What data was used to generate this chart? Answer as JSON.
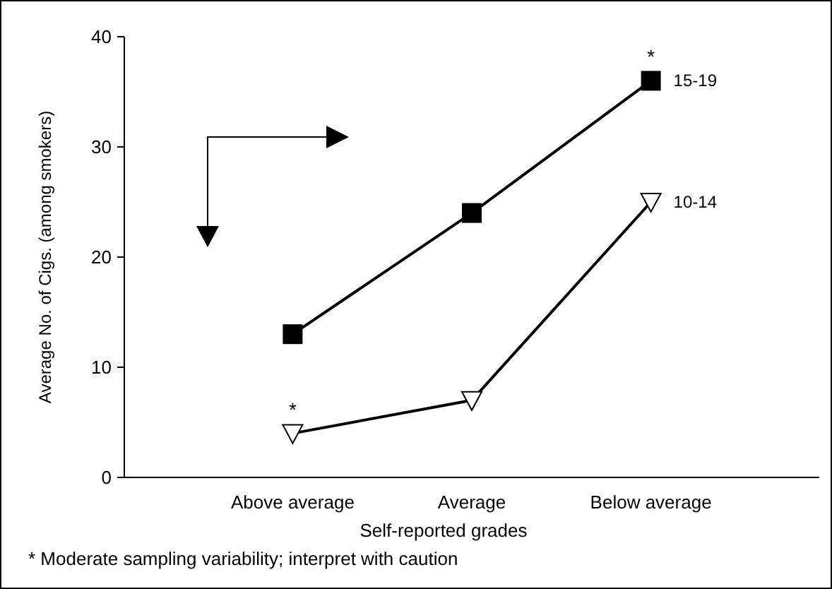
{
  "chart_data": {
    "type": "line",
    "xlabel": "Self-reported grades",
    "ylabel": "Average No. of Cigs. (among smokers)",
    "categories": [
      "Above average",
      "Average",
      "Below average"
    ],
    "series": [
      {
        "name": "15-19",
        "color": "#000000",
        "values": [
          13,
          24,
          36
        ],
        "marker": "square"
      },
      {
        "name": "10-14",
        "color": "#000000",
        "values": [
          4,
          7,
          25
        ],
        "marker": "triangle"
      }
    ],
    "ylim": [
      0,
      40
    ],
    "yticks": [
      0,
      10,
      20,
      30,
      40
    ],
    "grid": false,
    "annotations": [
      {
        "text": "*",
        "x": "Below average",
        "y": 36
      },
      {
        "text": "*",
        "x": "Above average",
        "y": 4
      },
      "* Moderate sampling variability; interpret with caution"
    ]
  }
}
